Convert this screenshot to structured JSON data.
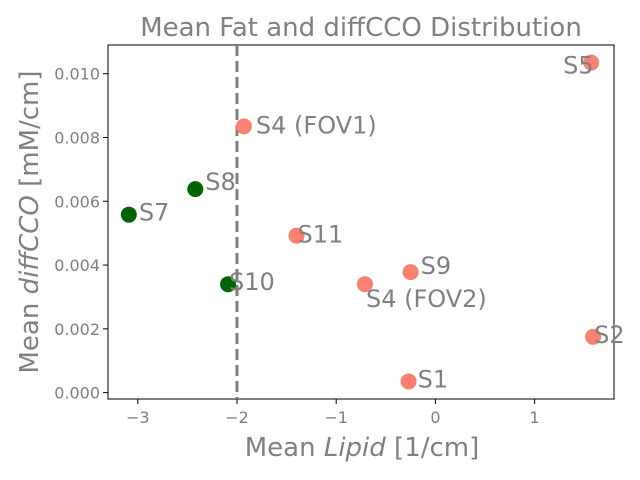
{
  "chart_data": {
    "type": "scatter",
    "title": "Mean Fat and diffCCO Distribution",
    "xlabel_prefix": "Mean ",
    "xlabel_italic": "Lipid",
    "xlabel_suffix": " [1/cm]",
    "ylabel_prefix": "Mean ",
    "ylabel_italic": "diffCCO",
    "ylabel_suffix": " [mM/cm]",
    "xlim": [
      -3.3,
      1.8
    ],
    "ylim": [
      -0.0002,
      0.0109
    ],
    "xticks": [
      -3,
      -2,
      -1,
      0,
      1
    ],
    "xtick_labels": [
      "−3",
      "−2",
      "−1",
      "0",
      "1"
    ],
    "yticks": [
      0.0,
      0.002,
      0.004,
      0.006,
      0.008,
      0.01
    ],
    "ytick_labels": [
      "0.000",
      "0.002",
      "0.004",
      "0.006",
      "0.008",
      "0.010"
    ],
    "grid": false,
    "threshold_line": {
      "x": -2.0,
      "style": "dashed",
      "color": "#808080"
    },
    "colors": {
      "green": "#006400",
      "salmon": "#fa8072",
      "text": "#808080"
    },
    "points": [
      {
        "label": "S5",
        "x": 1.57,
        "y": 0.01035,
        "color": "salmon"
      },
      {
        "label": "S4 (FOV1)",
        "x": -1.93,
        "y": 0.00835,
        "color": "salmon"
      },
      {
        "label": "S8",
        "x": -2.42,
        "y": 0.00638,
        "color": "green"
      },
      {
        "label": "S7",
        "x": -3.09,
        "y": 0.00558,
        "color": "green"
      },
      {
        "label": "S11",
        "x": -1.4,
        "y": 0.00492,
        "color": "salmon"
      },
      {
        "label": "S10",
        "x": -2.09,
        "y": 0.0034,
        "color": "green"
      },
      {
        "label": "S9",
        "x": -0.25,
        "y": 0.00378,
        "color": "salmon"
      },
      {
        "label": "S4 (FOV2)",
        "x": -0.71,
        "y": 0.0034,
        "color": "salmon"
      },
      {
        "label": "S2",
        "x": 1.59,
        "y": 0.00175,
        "color": "salmon"
      },
      {
        "label": "S1",
        "x": -0.27,
        "y": 0.00035,
        "color": "salmon"
      }
    ]
  }
}
